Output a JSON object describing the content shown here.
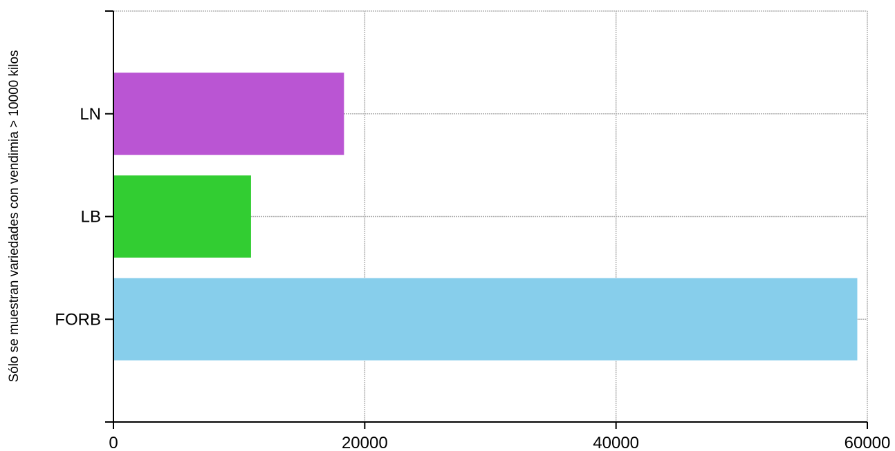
{
  "chart_data": {
    "type": "bar",
    "orientation": "horizontal",
    "title": "",
    "xlabel": "",
    "ylabel": "Sólo se muestran variedades con vendimia > 10000 kilos",
    "categories": [
      "FORB",
      "LB",
      "LN"
    ],
    "values": [
      59200,
      10950,
      18350
    ],
    "colors": [
      "#87ceeb",
      "#32cd32",
      "#ba55d3"
    ],
    "xlim": [
      0,
      60000
    ],
    "xticks": [
      0,
      20000,
      40000,
      60000
    ],
    "xtick_labels": [
      "0",
      "20000",
      "40000",
      "60000"
    ],
    "grid": true
  }
}
